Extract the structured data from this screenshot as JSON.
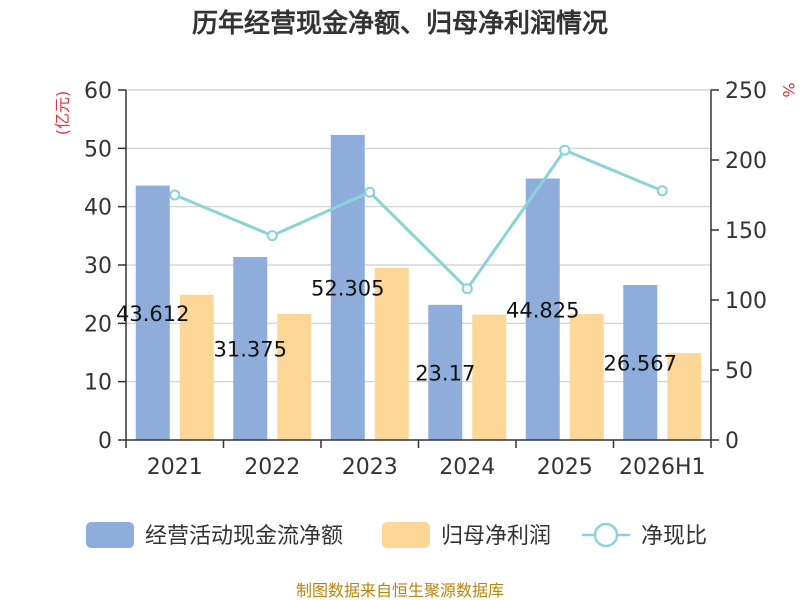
{
  "chart_data": {
    "type": "bar",
    "title": "历年经营现金净额、归母净利润情况",
    "categories": [
      "2021",
      "2022",
      "2023",
      "2024",
      "2025",
      "2026H1"
    ],
    "y_left": {
      "unit": "(亿元)",
      "ylim": [
        0,
        60
      ],
      "ticks": [
        0,
        10,
        20,
        30,
        40,
        50,
        60
      ]
    },
    "y_right": {
      "unit": "%",
      "ylim": [
        0,
        250
      ],
      "ticks": [
        0,
        50,
        100,
        150,
        200,
        250
      ]
    },
    "series": [
      {
        "name": "经营活动现金流净额",
        "kind": "bar",
        "axis": "left",
        "color": "#8eadda",
        "values": [
          43.612,
          31.375,
          52.305,
          23.17,
          44.825,
          26.567
        ],
        "labels": [
          "43.612",
          "31.375",
          "52.305",
          "23.17",
          "44.825",
          "26.567"
        ]
      },
      {
        "name": "归母净利润",
        "kind": "bar",
        "axis": "left",
        "color": "#fdd797",
        "values": [
          24.9,
          21.6,
          29.5,
          21.5,
          21.6,
          14.9
        ]
      },
      {
        "name": "净现比",
        "kind": "line",
        "axis": "right",
        "color": "#8bd3d8",
        "values": [
          175,
          146,
          177,
          108,
          207,
          178
        ]
      }
    ],
    "grid": true,
    "legend": "bottom"
  },
  "footer": {
    "source": "制图数据来自恒生聚源数据库"
  }
}
